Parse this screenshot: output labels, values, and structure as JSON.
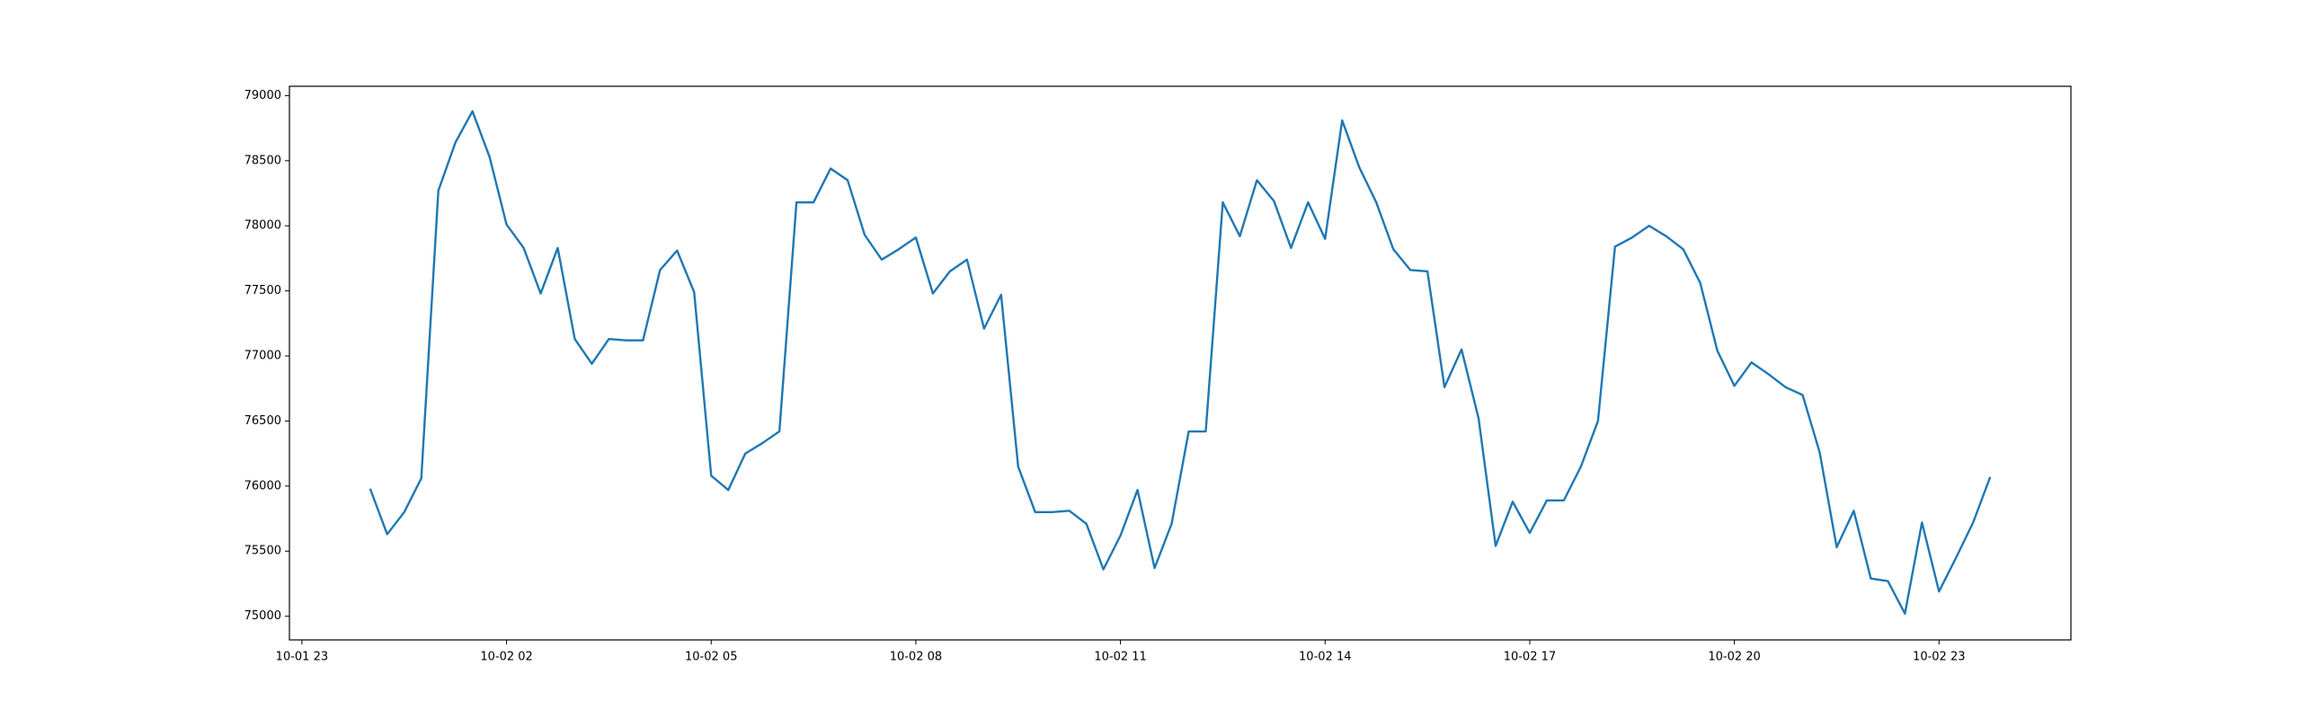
{
  "chart_data": {
    "type": "line",
    "x": [
      "10-02 00:00",
      "10-02 00:15",
      "10-02 00:30",
      "10-02 00:45",
      "10-02 01:00",
      "10-02 01:15",
      "10-02 01:30",
      "10-02 01:45",
      "10-02 02:00",
      "10-02 02:15",
      "10-02 02:30",
      "10-02 02:45",
      "10-02 03:00",
      "10-02 03:15",
      "10-02 03:30",
      "10-02 03:45",
      "10-02 04:00",
      "10-02 04:15",
      "10-02 04:30",
      "10-02 04:45",
      "10-02 05:00",
      "10-02 05:15",
      "10-02 05:30",
      "10-02 05:45",
      "10-02 06:00",
      "10-02 06:15",
      "10-02 06:30",
      "10-02 06:45",
      "10-02 07:00",
      "10-02 07:15",
      "10-02 07:30",
      "10-02 07:45",
      "10-02 08:00",
      "10-02 08:15",
      "10-02 08:30",
      "10-02 08:45",
      "10-02 09:00",
      "10-02 09:15",
      "10-02 09:30",
      "10-02 09:45",
      "10-02 10:00",
      "10-02 10:15",
      "10-02 10:30",
      "10-02 10:45",
      "10-02 11:00",
      "10-02 11:15",
      "10-02 11:30",
      "10-02 11:45",
      "10-02 12:00",
      "10-02 12:15",
      "10-02 12:30",
      "10-02 12:45",
      "10-02 13:00",
      "10-02 13:15",
      "10-02 13:30",
      "10-02 13:45",
      "10-02 14:00",
      "10-02 14:15",
      "10-02 14:30",
      "10-02 14:45",
      "10-02 15:00",
      "10-02 15:15",
      "10-02 15:30",
      "10-02 15:45",
      "10-02 16:00",
      "10-02 16:15",
      "10-02 16:30",
      "10-02 16:45",
      "10-02 17:00",
      "10-02 17:15",
      "10-02 17:30",
      "10-02 17:45",
      "10-02 18:00",
      "10-02 18:15",
      "10-02 18:30",
      "10-02 18:45",
      "10-02 19:00",
      "10-02 19:15",
      "10-02 19:30",
      "10-02 19:45",
      "10-02 20:00",
      "10-02 20:15",
      "10-02 20:30",
      "10-02 20:45",
      "10-02 21:00",
      "10-02 21:15",
      "10-02 21:30",
      "10-02 21:45",
      "10-02 22:00",
      "10-02 22:15",
      "10-02 22:30",
      "10-02 22:45",
      "10-02 23:00",
      "10-02 23:15",
      "10-02 23:30",
      "10-02 23:45"
    ],
    "series": [
      {
        "color": "#1f77b4",
        "values": [
          75980,
          75630,
          75800,
          76060,
          78270,
          78640,
          78880,
          78530,
          78010,
          77830,
          77480,
          77830,
          77130,
          76940,
          77130,
          77120,
          77120,
          77660,
          77810,
          77490,
          76080,
          75970,
          76250,
          76330,
          76420,
          78180,
          78180,
          78440,
          78350,
          77930,
          77740,
          77820,
          77910,
          77480,
          77650,
          77740,
          77210,
          77470,
          76150,
          75800,
          75800,
          75810,
          75710,
          75360,
          75620,
          75970,
          75370,
          75710,
          76420,
          76420,
          78180,
          77920,
          78350,
          78190,
          77830,
          78180,
          77900,
          78810,
          78450,
          78180,
          77820,
          77660,
          77650,
          76760,
          77050,
          76520,
          75540,
          75880,
          75640,
          75890,
          75890,
          76150,
          76500,
          77840,
          77910,
          78000,
          77920,
          77820,
          77560,
          77040,
          76770,
          76950,
          76860,
          76760,
          76700,
          76260,
          75530,
          75810,
          75290,
          75270,
          75020,
          75720,
          75190,
          75450,
          75720,
          76070
        ]
      }
    ],
    "xlim": [
      "10-01 22:49",
      "10-03 00:56"
    ],
    "xticks": [
      {
        "value": "10-01 23:00",
        "label": "10-01 23"
      },
      {
        "value": "10-02 02:00",
        "label": "10-02 02"
      },
      {
        "value": "10-02 05:00",
        "label": "10-02 05"
      },
      {
        "value": "10-02 08:00",
        "label": "10-02 08"
      },
      {
        "value": "10-02 11:00",
        "label": "10-02 11"
      },
      {
        "value": "10-02 14:00",
        "label": "10-02 14"
      },
      {
        "value": "10-02 17:00",
        "label": "10-02 17"
      },
      {
        "value": "10-02 20:00",
        "label": "10-02 20"
      },
      {
        "value": "10-02 23:00",
        "label": "10-02 23"
      }
    ],
    "ylim": [
      74818,
      79072
    ],
    "yticks": [
      75000,
      75500,
      76000,
      76500,
      77000,
      77500,
      78000,
      78500,
      79000
    ],
    "grid": false
  }
}
